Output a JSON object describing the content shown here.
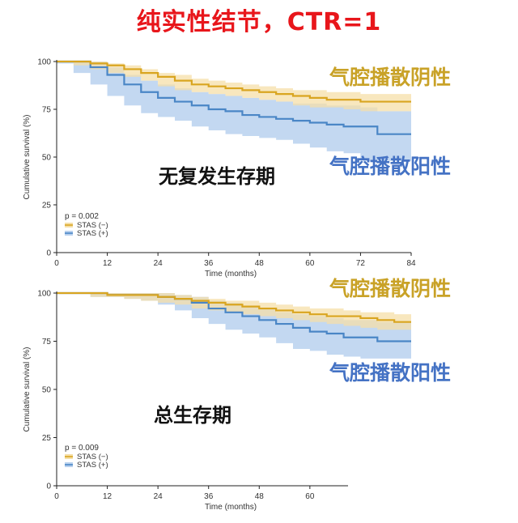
{
  "title": "纯实性结节，CTR=1",
  "colors": {
    "title": "#e8161b",
    "stas_neg": "#d9a520",
    "stas_neg_band": "#f5dfa8",
    "stas_pos": "#4a86c6",
    "stas_pos_band": "#b9d1ee",
    "annotation_neg": "#c9a227",
    "annotation_pos": "#4472c4"
  },
  "chart_data": [
    {
      "type": "line",
      "chart_label": "无复发生存期",
      "xlabel": "Time (months)",
      "ylabel": "Cumulative survival (%)",
      "xticks": [
        0,
        12,
        24,
        36,
        48,
        60,
        72,
        84
      ],
      "yticks": [
        0,
        25,
        50,
        75,
        100
      ],
      "xlim": [
        0,
        84
      ],
      "ylim": [
        0,
        100
      ],
      "p_value": "p = 0.002",
      "legend": [
        "STAS (−)",
        "STAS (+)"
      ],
      "annotations": {
        "neg": "气腔播散阴性",
        "pos": "气腔播散阳性"
      },
      "series": [
        {
          "name": "STAS (−)",
          "x": [
            0,
            4,
            8,
            12,
            16,
            20,
            24,
            28,
            32,
            36,
            40,
            44,
            48,
            52,
            56,
            60,
            64,
            68,
            72,
            76,
            80,
            84
          ],
          "y": [
            100,
            100,
            99,
            98,
            96,
            94,
            92,
            90,
            88,
            87,
            86,
            85,
            84,
            83,
            82,
            81,
            80,
            80,
            79,
            79,
            79,
            79
          ],
          "lower": [
            100,
            100,
            98,
            96,
            94,
            92,
            90,
            87,
            85,
            84,
            83,
            82,
            81,
            80,
            79,
            77,
            76,
            76,
            75,
            74,
            74,
            74
          ],
          "upper": [
            100,
            100,
            100,
            99,
            98,
            96,
            94,
            93,
            91,
            90,
            89,
            88,
            87,
            86,
            85,
            85,
            84,
            84,
            83,
            83,
            83,
            83
          ]
        },
        {
          "name": "STAS (+)",
          "x": [
            0,
            4,
            8,
            12,
            16,
            20,
            24,
            28,
            32,
            36,
            40,
            44,
            48,
            52,
            56,
            60,
            64,
            68,
            72,
            76,
            80,
            84
          ],
          "y": [
            100,
            100,
            97,
            93,
            88,
            84,
            81,
            79,
            77,
            75,
            74,
            72,
            71,
            70,
            69,
            68,
            67,
            66,
            66,
            62,
            62,
            62
          ],
          "lower": [
            100,
            99,
            94,
            88,
            82,
            77,
            73,
            71,
            69,
            66,
            64,
            62,
            61,
            60,
            59,
            57,
            55,
            53,
            52,
            48,
            48,
            48
          ],
          "upper": [
            100,
            100,
            100,
            97,
            93,
            90,
            88,
            86,
            84,
            83,
            82,
            81,
            80,
            79,
            78,
            78,
            77,
            77,
            76,
            74,
            74,
            74
          ]
        }
      ]
    },
    {
      "type": "line",
      "chart_label": "总生存期",
      "xlabel": "Time (months)",
      "ylabel": "Cumulative survival (%)",
      "xticks": [
        0,
        12,
        24,
        36,
        48,
        60
      ],
      "yticks": [
        0,
        25,
        50,
        75,
        100
      ],
      "xlim": [
        0,
        84
      ],
      "ylim": [
        0,
        100
      ],
      "p_value": "p = 0.009",
      "legend": [
        "STAS (−)",
        "STAS (+)"
      ],
      "annotations": {
        "neg": "气腔播散阴性",
        "pos": "气腔播散阳性"
      },
      "series": [
        {
          "name": "STAS (−)",
          "x": [
            0,
            4,
            8,
            12,
            16,
            20,
            24,
            28,
            32,
            36,
            40,
            44,
            48,
            52,
            56,
            60,
            64,
            68,
            72,
            76,
            80,
            84
          ],
          "y": [
            100,
            100,
            100,
            99,
            99,
            99,
            98,
            97,
            96,
            95,
            94,
            93,
            92,
            91,
            90,
            89,
            88,
            88,
            87,
            86,
            85,
            85
          ],
          "lower": [
            100,
            100,
            100,
            98,
            98,
            97,
            96,
            95,
            94,
            92,
            91,
            90,
            89,
            88,
            87,
            86,
            85,
            84,
            83,
            82,
            81,
            81
          ],
          "upper": [
            100,
            100,
            100,
            100,
            100,
            100,
            100,
            99,
            98,
            97,
            96,
            96,
            95,
            94,
            93,
            92,
            92,
            91,
            90,
            90,
            89,
            89
          ]
        },
        {
          "name": "STAS (+)",
          "x": [
            0,
            4,
            8,
            12,
            16,
            20,
            24,
            28,
            32,
            36,
            40,
            44,
            48,
            52,
            56,
            60,
            64,
            68,
            72,
            76,
            80,
            84
          ],
          "y": [
            100,
            100,
            100,
            99,
            99,
            99,
            98,
            97,
            95,
            92,
            90,
            88,
            86,
            84,
            82,
            80,
            79,
            77,
            77,
            75,
            75,
            75
          ],
          "lower": [
            100,
            100,
            100,
            98,
            98,
            97,
            96,
            94,
            91,
            87,
            84,
            81,
            79,
            77,
            74,
            71,
            70,
            68,
            67,
            66,
            66,
            66
          ],
          "upper": [
            100,
            100,
            100,
            100,
            100,
            100,
            100,
            99,
            98,
            96,
            95,
            93,
            92,
            90,
            89,
            88,
            87,
            86,
            86,
            85,
            85,
            85
          ]
        }
      ]
    }
  ]
}
